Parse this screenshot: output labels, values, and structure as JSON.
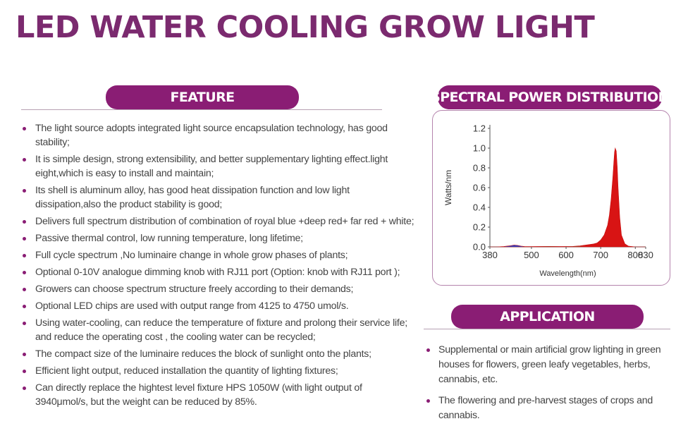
{
  "title": "LED  WATER COOLING GROW LIGHT",
  "feature": {
    "header": "FEATURE",
    "items": [
      "The light source adopts integrated light source encapsulation technology, has good stability;",
      "It is simple design, strong extensibility, and better supplementary lighting effect.light eight,which is easy to install and maintain;",
      "Its shell is aluminum alloy, has good heat dissipation function and low light dissipation,also the product stability is good;",
      "Delivers full spectrum distribution of combination of  royal blue +deep red+ far red + white;",
      "Passive thermal control, low running temperature, long lifetime;",
      "Full cycle spectrum ,No luminaire change in whole grow phases of plants;",
      "Optional 0-10V analogue dimming knob with RJ11 port  (Option: knob with RJ11 port );",
      "Growers can choose spectrum structure freely according to their demands;",
      "Optional LED chips are used with output range from 4125 to 4750 umol/s.",
      "Using water-cooling,  can reduce the temperature of fixture and prolong their service life; and reduce the operating cost , the cooling water can be recycled;",
      "The compact size of the luminaire reduces the block of sunlight onto the plants;",
      "Efficient light output, reduced installation the quantity of lighting fixtures;",
      "Can directly replace the hightest level fixture HPS 1050W (with light output of 3940μmol/s, but the weight can be reduced by 85%."
    ]
  },
  "spd": {
    "header": "SPECTRAL POWER DISTRIBUTION"
  },
  "application": {
    "header": "APPLICATION",
    "items": [
      "Supplemental or main artificial grow lighting in green houses for flowers, green leafy vegetables, herbs, cannabis, etc.",
      "The flowering and pre-harvest stages of crops and cannabis."
    ]
  },
  "chart_data": {
    "type": "area",
    "title": "",
    "xlabel": "Wavelength(nm)",
    "ylabel": "Watts/nm",
    "x_ticks": [
      "380",
      "500",
      "600",
      "700",
      "800",
      "830"
    ],
    "y_ticks": [
      "0.0",
      "0.2",
      "0.4",
      "0.6",
      "0.8",
      "1.0",
      "1.2"
    ],
    "xlim": [
      380,
      830
    ],
    "ylim": [
      0,
      1.2
    ],
    "grid": false,
    "fill_colors": {
      "blue": "#1b3fd6",
      "green": "#2fbf55",
      "red": "#d81414"
    },
    "series": [
      {
        "x": [
          380,
          400,
          420,
          440,
          450,
          460,
          470,
          480,
          500,
          520,
          550,
          580,
          600,
          620,
          640,
          660,
          680,
          690,
          700,
          710,
          720,
          725,
          730,
          735,
          738,
          740,
          742,
          745,
          748,
          750,
          755,
          760,
          770,
          780,
          800,
          830
        ],
        "y": [
          0.0,
          0.0,
          0.004,
          0.012,
          0.018,
          0.015,
          0.008,
          0.004,
          0.003,
          0.004,
          0.005,
          0.004,
          0.004,
          0.005,
          0.01,
          0.02,
          0.03,
          0.04,
          0.07,
          0.12,
          0.22,
          0.32,
          0.48,
          0.7,
          0.86,
          0.96,
          1.0,
          0.97,
          0.8,
          0.62,
          0.3,
          0.12,
          0.03,
          0.008,
          0.0,
          0.0
        ]
      }
    ]
  }
}
